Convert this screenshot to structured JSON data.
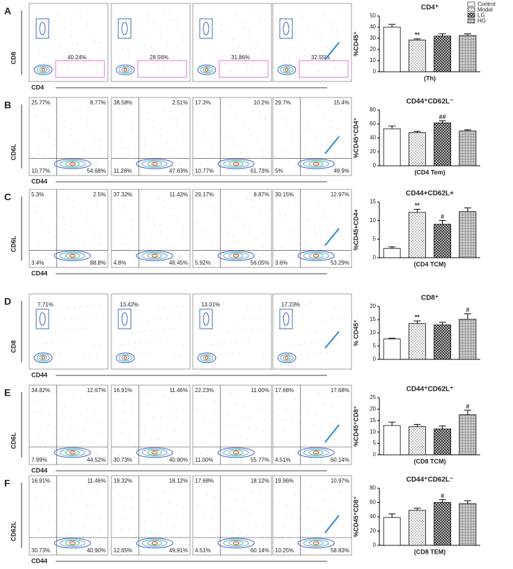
{
  "column_headers": [
    "Control",
    "Model",
    "LG",
    "HG"
  ],
  "legend": [
    "Control",
    "Model",
    "LG",
    "HG"
  ],
  "flow_panels": [
    {
      "letter": "A",
      "y_label": "CD8",
      "x_label": "CD4",
      "plots": [
        [
          "40.24%"
        ],
        [
          "28.56%"
        ],
        [
          "31.86%"
        ],
        [
          "32.55%"
        ]
      ]
    },
    {
      "letter": "B",
      "y_label": "CD6L",
      "x_label": "CD44",
      "plots": [
        [
          "25.77%",
          "8.77%",
          "10.77%",
          "54.68%"
        ],
        [
          "38.58%",
          "2.51%",
          "11.28%",
          "47.63%"
        ],
        [
          "17.3%",
          "10.2%",
          "10.77%",
          "61.73%"
        ],
        [
          "29.7%",
          "15.4%",
          "5%",
          "49.9%"
        ]
      ]
    },
    {
      "letter": "C",
      "y_label": "CD6L",
      "x_label": "CD44",
      "plots": [
        [
          "5.3%",
          "2.5%",
          "3.4%",
          "88.8%"
        ],
        [
          "37.32%",
          "11.43%",
          "4.8%",
          "46.45%"
        ],
        [
          "29.17%",
          "8.87%",
          "5.92%",
          "56.05%"
        ],
        [
          "30.15%",
          "12.97%",
          "3.6%",
          "53.29%"
        ]
      ]
    },
    {
      "letter": "D",
      "y_label": "CD8",
      "x_label": "CD44",
      "plots": [
        [
          "7.71%"
        ],
        [
          "13.42%"
        ],
        [
          "13.01%"
        ],
        [
          "17.23%"
        ]
      ]
    },
    {
      "letter": "E",
      "y_label": "CD6L",
      "x_label": "CD44",
      "plots": [
        [
          "34.82%",
          "12.67%",
          "7.99%",
          "44.52%"
        ],
        [
          "16.91%",
          "11.46%",
          "30.73%",
          "40.90%"
        ],
        [
          "22.23%",
          "11.00%",
          "11.00%",
          "55.77%"
        ],
        [
          "17.68%",
          "17.68%",
          "4.51%",
          "60.14%"
        ]
      ]
    },
    {
      "letter": "F",
      "y_label": "CD62L",
      "x_label": "CD44",
      "plots": [
        [
          "16.91%",
          "11.46%",
          "30.73%",
          "40.90%"
        ],
        [
          "19.32%",
          "18.12%",
          "12.65%",
          "49.91%"
        ],
        [
          "17.68%",
          "18.12%",
          "4.51%",
          "60.14%"
        ],
        [
          "19.96%",
          "10.97%",
          "10.25%",
          "58.83%"
        ]
      ]
    }
  ],
  "chart_data": [
    {
      "type": "bar",
      "title": "CD4⁺",
      "y_label": "%CD45⁺",
      "x_label": "(Th)",
      "values": [
        40,
        28.5,
        32,
        32.5
      ],
      "errors": [
        2.5,
        1,
        2,
        1.5
      ],
      "annotations": [
        null,
        "**",
        null,
        null
      ],
      "ylim": [
        0,
        50
      ],
      "yticks": [
        0,
        10,
        20,
        30,
        40,
        50
      ]
    },
    {
      "type": "bar",
      "title": "CD44⁺CD62L⁻",
      "y_label": "%CD45⁺CD4⁺",
      "x_label": "(CD4 Tem)",
      "values": [
        53,
        47.5,
        61.5,
        50
      ],
      "errors": [
        4,
        2,
        3,
        1.5
      ],
      "annotations": [
        null,
        null,
        "##",
        null
      ],
      "ylim": [
        0,
        80
      ],
      "yticks": [
        0,
        20,
        40,
        60,
        80
      ]
    },
    {
      "type": "bar",
      "title": "CD44+CD62L+",
      "y_label": "%CD45+CD4+",
      "x_label": "(CD4 TCM)",
      "values": [
        2.5,
        12.2,
        9,
        12.4
      ],
      "errors": [
        0.4,
        0.8,
        1,
        1
      ],
      "annotations": [
        null,
        "**",
        "#",
        null
      ],
      "ylim": [
        0,
        15
      ],
      "yticks": [
        0,
        5,
        10,
        15
      ]
    },
    {
      "type": "bar",
      "title": "CD8⁺",
      "y_label": "% CD45⁺",
      "values": [
        7.7,
        13.5,
        13,
        15.2
      ],
      "errors": [
        0.3,
        1,
        1,
        2
      ],
      "annotations": [
        null,
        "**",
        null,
        "#"
      ],
      "ylim": [
        0,
        20
      ],
      "yticks": [
        0,
        5,
        10,
        15,
        20
      ]
    },
    {
      "type": "bar",
      "title": "CD44⁺CD62L⁺",
      "y_label": "%CD45⁺CD8⁺",
      "x_label": "(CD8 TCM)",
      "values": [
        12.8,
        12.3,
        11.3,
        17.5
      ],
      "errors": [
        1.5,
        1,
        1.3,
        2
      ],
      "annotations": [
        null,
        null,
        null,
        "#"
      ],
      "ylim": [
        0,
        25
      ],
      "yticks": [
        0,
        5,
        10,
        15,
        20,
        25
      ]
    },
    {
      "type": "bar",
      "title": "CD44⁺CD62L⁻",
      "y_label": "%CD45⁺CD8⁺",
      "x_label": "(CD8 TEM)",
      "values": [
        39,
        49,
        60,
        58.5
      ],
      "errors": [
        5,
        3,
        4,
        4
      ],
      "annotations": [
        null,
        null,
        "#",
        null
      ],
      "ylim": [
        0,
        80
      ],
      "yticks": [
        0,
        20,
        40,
        60,
        80
      ]
    }
  ]
}
